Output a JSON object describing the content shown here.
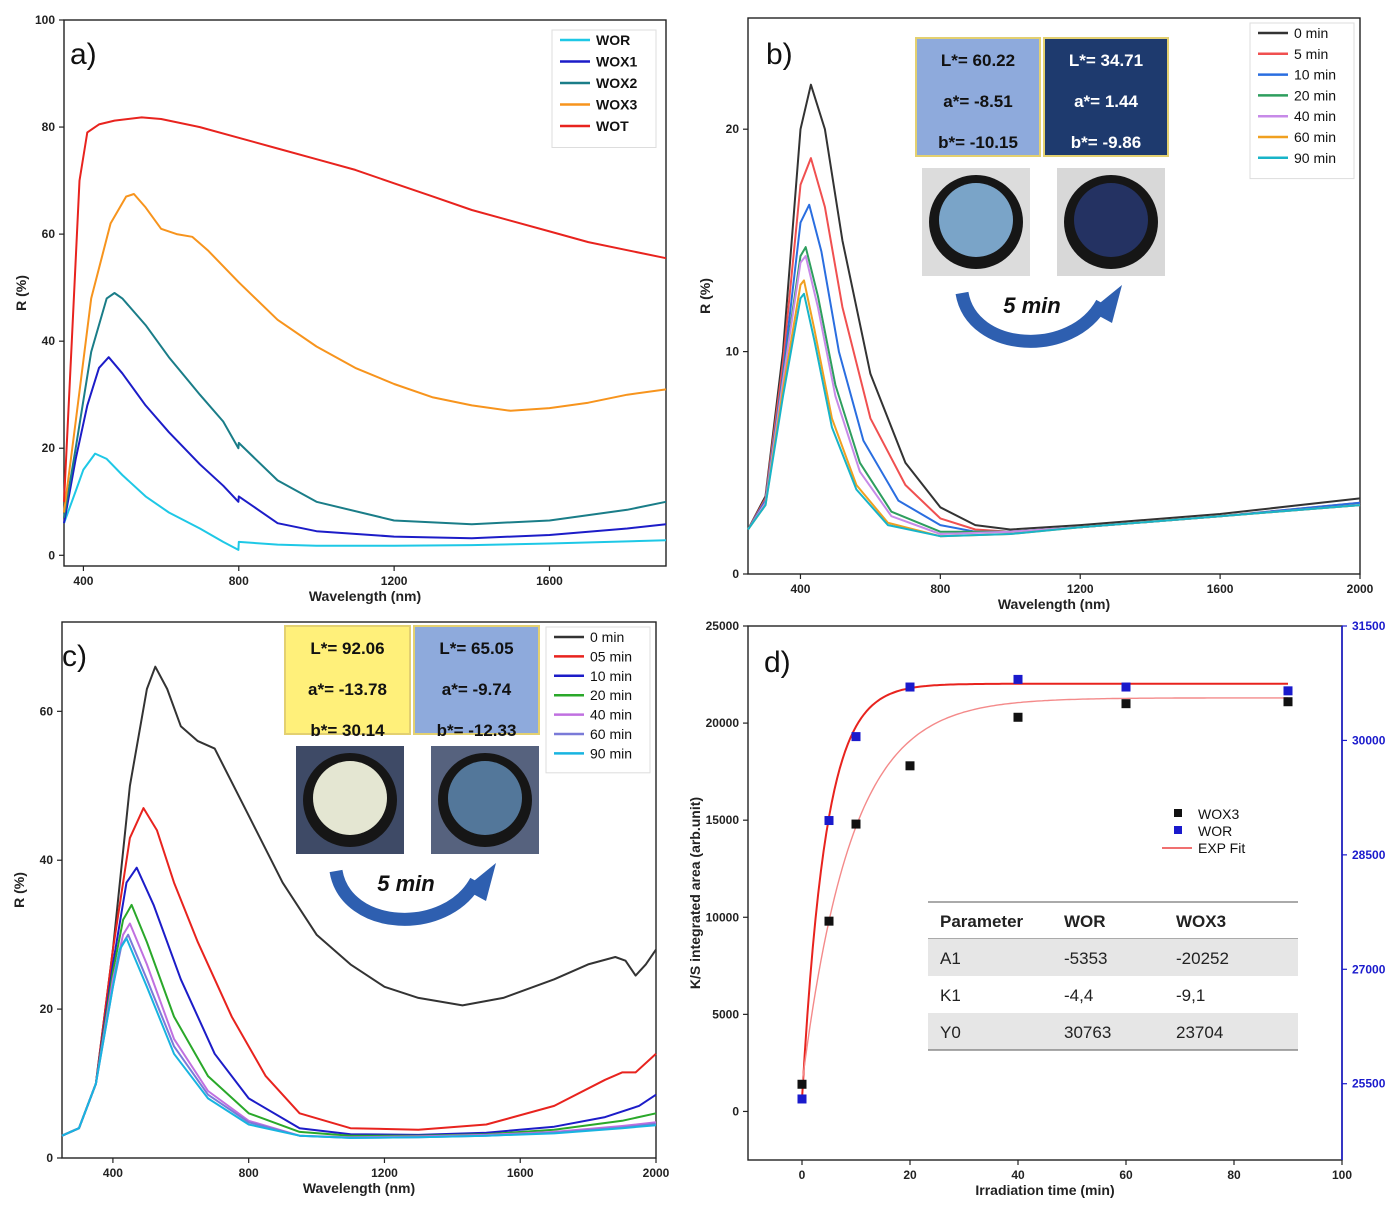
{
  "chart_data": [
    {
      "panel": "a)",
      "type": "line",
      "xlabel": "Wavelength (nm)",
      "ylabel": "R (%)",
      "xlim": [
        350,
        1900
      ],
      "ylim": [
        -2,
        100
      ],
      "xticks": [
        400,
        800,
        1200,
        1600
      ],
      "yticks": [
        0,
        20,
        40,
        60,
        80,
        100
      ],
      "legend_position": "top-right",
      "series": [
        {
          "name": "WOR",
          "color": "#1ec8e6",
          "x": [
            350,
            380,
            400,
            430,
            460,
            500,
            560,
            620,
            700,
            760,
            799,
            800,
            900,
            1000,
            1200,
            1400,
            1600,
            1800,
            1900
          ],
          "y": [
            6,
            12,
            16,
            19,
            18,
            15,
            11,
            8,
            5,
            2.5,
            1,
            2.5,
            2,
            1.8,
            1.8,
            1.9,
            2.2,
            2.6,
            2.8
          ]
        },
        {
          "name": "WOX1",
          "color": "#1c1cc8",
          "x": [
            350,
            380,
            410,
            440,
            465,
            500,
            560,
            620,
            700,
            760,
            799,
            800,
            900,
            1000,
            1200,
            1400,
            1600,
            1800,
            1900
          ],
          "y": [
            6,
            18,
            28,
            35,
            37,
            34,
            28,
            23,
            17,
            13,
            10,
            11,
            6,
            4.5,
            3.5,
            3.2,
            3.8,
            5,
            5.8
          ]
        },
        {
          "name": "WOX2",
          "color": "#1a7d88",
          "x": [
            350,
            380,
            420,
            460,
            480,
            500,
            560,
            620,
            700,
            760,
            799,
            800,
            900,
            1000,
            1200,
            1400,
            1600,
            1800,
            1900
          ],
          "y": [
            7,
            20,
            38,
            48,
            49,
            48,
            43,
            37,
            30,
            25,
            20,
            21,
            14,
            10,
            6.5,
            5.8,
            6.5,
            8.5,
            10
          ]
        },
        {
          "name": "WOX3",
          "color": "#f7941d",
          "x": [
            350,
            380,
            420,
            470,
            510,
            530,
            560,
            600,
            640,
            680,
            720,
            800,
            900,
            1000,
            1100,
            1200,
            1300,
            1400,
            1500,
            1600,
            1700,
            1800,
            1900
          ],
          "y": [
            8,
            25,
            48,
            62,
            67,
            67.5,
            65,
            61,
            60,
            59.5,
            57,
            51,
            44,
            39,
            35,
            32,
            29.5,
            28,
            27,
            27.5,
            28.5,
            30,
            31
          ]
        },
        {
          "name": "WOT",
          "color": "#e8231e",
          "x": [
            350,
            370,
            390,
            410,
            440,
            480,
            550,
            600,
            700,
            800,
            900,
            1000,
            1100,
            1200,
            1300,
            1400,
            1500,
            1600,
            1700,
            1800,
            1900
          ],
          "y": [
            10,
            40,
            70,
            79,
            80.5,
            81.2,
            81.8,
            81.5,
            80,
            78,
            76,
            74,
            72,
            69.5,
            67,
            64.5,
            62.5,
            60.5,
            58.5,
            57,
            55.5
          ]
        }
      ]
    },
    {
      "panel": "b)",
      "type": "line",
      "xlabel": "Wavelength (nm)",
      "ylabel": "R (%)",
      "xlim": [
        250,
        2000
      ],
      "ylim": [
        0,
        25
      ],
      "xticks": [
        400,
        800,
        1200,
        1600,
        2000
      ],
      "yticks": [
        0,
        10,
        20
      ],
      "legend_position": "top-right",
      "series": [
        {
          "name": "0   min",
          "color": "#333333",
          "x": [
            250,
            300,
            350,
            400,
            430,
            470,
            520,
            600,
            700,
            800,
            900,
            1000,
            1200,
            1600,
            2000
          ],
          "y": [
            2,
            3.5,
            10,
            20,
            22,
            20,
            15,
            9,
            5,
            3,
            2.2,
            2,
            2.2,
            2.7,
            3.4
          ]
        },
        {
          "name": "5 min",
          "color": "#f05050",
          "x": [
            250,
            300,
            350,
            400,
            430,
            470,
            520,
            600,
            700,
            800,
            900,
            1000,
            1200,
            1600,
            2000
          ],
          "y": [
            2,
            3.4,
            9.5,
            17.5,
            18.7,
            16.5,
            12,
            7,
            4,
            2.5,
            2,
            1.9,
            2.1,
            2.6,
            3.2
          ]
        },
        {
          "name": "10 min",
          "color": "#2a6ee0",
          "x": [
            250,
            300,
            350,
            400,
            425,
            460,
            510,
            580,
            680,
            800,
            900,
            1000,
            1200,
            1600,
            2000
          ],
          "y": [
            2,
            3.3,
            9,
            15.8,
            16.6,
            14.5,
            10,
            6,
            3.3,
            2.2,
            1.9,
            1.9,
            2.1,
            2.6,
            3.2
          ]
        },
        {
          "name": "20 min",
          "color": "#2e9e5e",
          "x": [
            250,
            300,
            350,
            400,
            415,
            450,
            500,
            570,
            660,
            800,
            1000,
            1200,
            1600,
            2000
          ],
          "y": [
            2,
            3.2,
            8.8,
            14.3,
            14.7,
            12.5,
            8.5,
            5,
            2.8,
            1.9,
            1.9,
            2.1,
            2.6,
            3.1
          ]
        },
        {
          "name": "40 min",
          "color": "#c78ae8",
          "x": [
            250,
            300,
            350,
            400,
            415,
            450,
            500,
            570,
            660,
            800,
            1000,
            1200,
            1600,
            2000
          ],
          "y": [
            2,
            3.2,
            8.7,
            14,
            14.3,
            12,
            8,
            4.6,
            2.6,
            1.8,
            1.9,
            2.1,
            2.6,
            3.1
          ]
        },
        {
          "name": "60 min",
          "color": "#f0a020",
          "x": [
            250,
            300,
            350,
            400,
            410,
            440,
            490,
            560,
            650,
            800,
            1000,
            1200,
            1600,
            2000
          ],
          "y": [
            2,
            3.1,
            8.3,
            13,
            13.2,
            11,
            7,
            4,
            2.3,
            1.7,
            1.8,
            2.1,
            2.6,
            3.1
          ]
        },
        {
          "name": "90 min",
          "color": "#18b4c8",
          "x": [
            250,
            300,
            350,
            400,
            410,
            440,
            490,
            560,
            650,
            800,
            1000,
            1200,
            1600,
            2000
          ],
          "y": [
            2,
            3.1,
            8,
            12.4,
            12.6,
            10.5,
            6.6,
            3.8,
            2.2,
            1.7,
            1.8,
            2.1,
            2.6,
            3.1
          ]
        }
      ]
    },
    {
      "panel": "c)",
      "type": "line",
      "xlabel": "Wavelength (nm)",
      "ylabel": "R (%)",
      "xlim": [
        250,
        2000
      ],
      "ylim": [
        0,
        72
      ],
      "xticks": [
        400,
        800,
        1200,
        1600,
        2000
      ],
      "yticks": [
        0,
        20,
        40,
        60
      ],
      "legend_position": "top-right",
      "series": [
        {
          "name": "0   min",
          "color": "#333333",
          "x": [
            250,
            300,
            350,
            400,
            450,
            500,
            525,
            560,
            600,
            650,
            700,
            800,
            900,
            1000,
            1100,
            1200,
            1300,
            1430,
            1550,
            1700,
            1800,
            1880,
            1910,
            1940,
            1970,
            2000
          ],
          "y": [
            3,
            4,
            10,
            28,
            50,
            63,
            66,
            63,
            58,
            56,
            55,
            46,
            37,
            30,
            26,
            23,
            21.5,
            20.5,
            21.5,
            24,
            26,
            27,
            26.5,
            24.5,
            26,
            28
          ]
        },
        {
          "name": "05 min",
          "color": "#e8231e",
          "x": [
            250,
            300,
            350,
            400,
            450,
            490,
            530,
            580,
            650,
            750,
            850,
            950,
            1100,
            1300,
            1500,
            1700,
            1850,
            1900,
            1940,
            2000
          ],
          "y": [
            3,
            4,
            10,
            28,
            43,
            47,
            44,
            37,
            29,
            19,
            11,
            6,
            4,
            3.8,
            4.5,
            7,
            10.5,
            11.5,
            11.5,
            14
          ]
        },
        {
          "name": "10 min",
          "color": "#1c1cc8",
          "x": [
            250,
            300,
            350,
            400,
            440,
            470,
            520,
            600,
            700,
            800,
            950,
            1100,
            1300,
            1500,
            1700,
            1850,
            1950,
            2000
          ],
          "y": [
            3,
            4,
            10,
            26,
            37,
            39,
            34,
            24,
            14,
            8,
            4,
            3.2,
            3.1,
            3.4,
            4.2,
            5.5,
            7,
            8.5
          ]
        },
        {
          "name": "20 min",
          "color": "#2aa82a",
          "x": [
            250,
            300,
            350,
            400,
            430,
            455,
            500,
            580,
            680,
            800,
            950,
            1100,
            1300,
            1500,
            1700,
            1900,
            2000
          ],
          "y": [
            3,
            4,
            10,
            25,
            32,
            34,
            29,
            19,
            11,
            6,
            3.5,
            3,
            3,
            3.2,
            3.8,
            5,
            6
          ]
        },
        {
          "name": "40 min",
          "color": "#c070e0",
          "x": [
            250,
            300,
            350,
            400,
            430,
            450,
            500,
            580,
            680,
            800,
            950,
            1100,
            1300,
            1500,
            1700,
            1900,
            2000
          ],
          "y": [
            3,
            4,
            10,
            24,
            30,
            31.5,
            26,
            16,
            9,
            5,
            3,
            2.8,
            2.9,
            3.1,
            3.5,
            4.3,
            4.8
          ]
        },
        {
          "name": "60 min",
          "color": "#7a7ad8",
          "x": [
            250,
            300,
            350,
            400,
            425,
            445,
            500,
            580,
            680,
            800,
            950,
            1100,
            1300,
            1500,
            1700,
            1900,
            2000
          ],
          "y": [
            3,
            4,
            10,
            23,
            28.5,
            30,
            24,
            15,
            8.5,
            4.8,
            3,
            2.7,
            2.8,
            3,
            3.4,
            4.1,
            4.6
          ]
        },
        {
          "name": "90 min",
          "color": "#18b4e0",
          "x": [
            250,
            300,
            350,
            400,
            420,
            440,
            500,
            580,
            680,
            800,
            950,
            1100,
            1300,
            1500,
            1700,
            1900,
            2000
          ],
          "y": [
            3,
            4,
            10,
            23,
            28,
            29.5,
            23,
            14,
            8,
            4.5,
            3,
            2.7,
            2.8,
            3,
            3.3,
            4,
            4.4
          ]
        }
      ]
    },
    {
      "panel": "d)",
      "type": "scatter",
      "xlabel": "Irradiation time (min)",
      "ylabel": "K/S integrated area (arb.unit)",
      "xlim": [
        -10,
        100
      ],
      "ylim": [
        -2500,
        25000
      ],
      "y2lim": [
        24500,
        31500
      ],
      "xticks": [
        0,
        20,
        40,
        60,
        80,
        100
      ],
      "yticks": [
        0,
        5000,
        10000,
        15000,
        20000,
        25000
      ],
      "y2ticks": [
        25500,
        27000,
        28500,
        30000,
        31500
      ],
      "legend_position": "middle-right",
      "series": [
        {
          "name": "WOX3",
          "color": "#111111",
          "axis": "left",
          "x": [
            0,
            5,
            10,
            20,
            40,
            60,
            90
          ],
          "y": [
            1400,
            9800,
            14800,
            17800,
            20300,
            21000,
            21100
          ]
        },
        {
          "name": "WOR",
          "color": "#1a1acc",
          "axis": "right",
          "x": [
            0,
            5,
            10,
            20,
            40,
            60,
            90
          ],
          "y": [
            25300,
            28950,
            30050,
            30700,
            30800,
            30700,
            30650
          ]
        },
        {
          "name": "EXP Fit",
          "color": "#f07070",
          "axis": "left"
        }
      ],
      "fits": [
        {
          "series": "WOR",
          "color": "#e8231e",
          "A1": -5353,
          "K1": -4.4,
          "Y0": 30763
        },
        {
          "series": "WOX3",
          "color": "#f48a8a",
          "A1": -20252,
          "K1": -9.1,
          "Y0": 23704
        }
      ]
    }
  ],
  "insets": {
    "b": {
      "box1": [
        "L*= 60.22",
        "a*= -8.51",
        "b*= -10.15"
      ],
      "box2": [
        "L*= 34.71",
        "a*= 1.44",
        "b*= -9.86"
      ],
      "box1_color": "#8eaadc",
      "box2_color": "#1e3a6e",
      "arrow_label": "5 min"
    },
    "c": {
      "box1": [
        "L*= 92.06",
        "a*= -13.78",
        "b*= 30.14"
      ],
      "box2": [
        "L*= 65.05",
        "a*= -9.74",
        "b*= -12.33"
      ],
      "box1_color": "#fff07a",
      "box2_color": "#8eaadc",
      "arrow_label": "5 min"
    }
  },
  "table": {
    "headers": [
      "Parameter",
      "WOR",
      "WOX3"
    ],
    "rows": [
      [
        "A1",
        "-5353",
        "-20252"
      ],
      [
        "K1",
        "-4,4",
        "-9,1"
      ],
      [
        "Y0",
        "30763",
        "23704"
      ]
    ]
  }
}
